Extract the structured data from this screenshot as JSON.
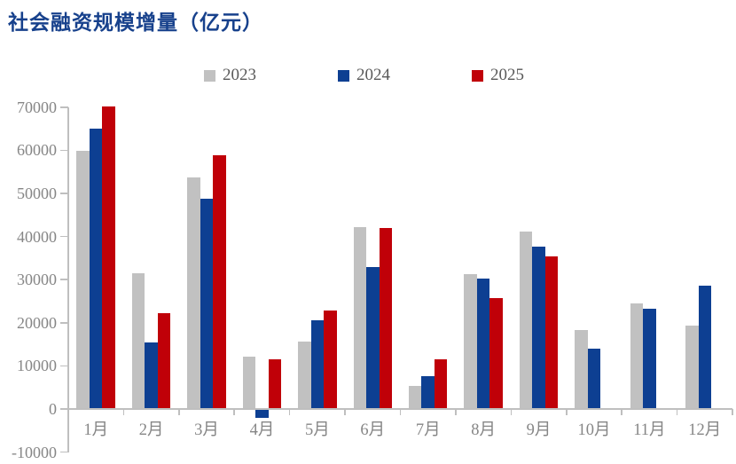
{
  "chart_data": {
    "type": "bar",
    "title": "社会融资规模增量（亿元）",
    "categories": [
      "1月",
      "2月",
      "3月",
      "4月",
      "5月",
      "6月",
      "7月",
      "8月",
      "9月",
      "10月",
      "11月",
      "12月"
    ],
    "series": [
      {
        "name": "2023",
        "color": "#C1C1C1",
        "values": [
          59900,
          31500,
          53800,
          12200,
          15600,
          42200,
          5300,
          31200,
          41200,
          18400,
          24500,
          19400
        ]
      },
      {
        "name": "2024",
        "color": "#0D3F92",
        "values": [
          65100,
          15500,
          48700,
          -2000,
          20600,
          33000,
          7700,
          30300,
          37600,
          13900,
          23300,
          28500
        ]
      },
      {
        "name": "2025",
        "color": "#C00008",
        "values": [
          70200,
          22300,
          58900,
          11600,
          22900,
          42000,
          11600,
          25700,
          35300,
          null,
          null,
          null
        ]
      }
    ],
    "ylim": [
      -10000,
      70000
    ],
    "yticks": [
      -10000,
      0,
      10000,
      20000,
      30000,
      40000,
      50000,
      60000,
      70000
    ],
    "xlabel": "",
    "ylabel": "",
    "grid": false,
    "legend_position": "top",
    "colors": {
      "title": "#17418C",
      "axis": "#BFBFBF",
      "tick_label": "#868686",
      "legend_text": "#595959",
      "background": "#FFFFFF"
    }
  }
}
